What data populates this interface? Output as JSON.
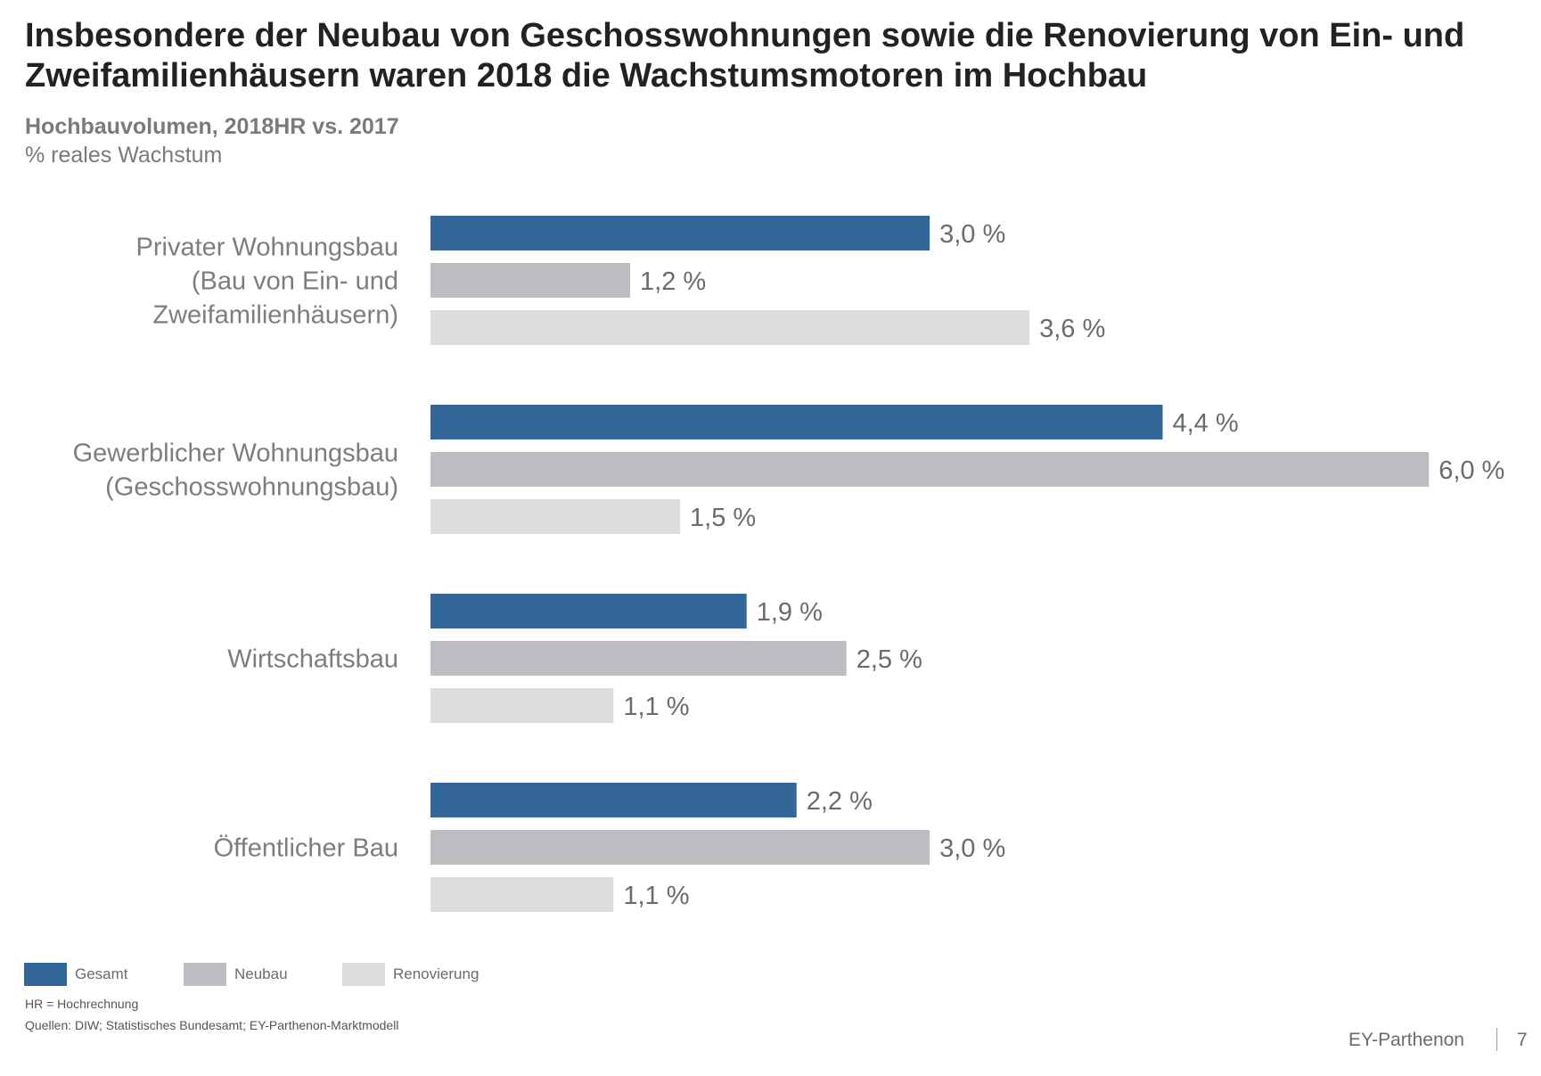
{
  "title": "Insbesondere der Neubau von Geschosswohnungen sowie die Renovierung von Ein- und Zweifamilienhäusern waren 2018 die Wachstumsmotoren im Hochbau",
  "subtitle": "Hochbauvolumen, 2018HR vs. 2017",
  "unit": "% reales Wachstum",
  "chart_data": {
    "type": "bar",
    "orientation": "horizontal",
    "categories": [
      [
        "Privater Wohnungsbau",
        "(Bau von Ein- und",
        "Zweifamilienhäusern)"
      ],
      [
        "Gewerblicher Wohnungsbau",
        "(Geschosswohnungsbau)"
      ],
      [
        "Wirtschaftsbau"
      ],
      [
        "Öffentlicher Bau"
      ]
    ],
    "series": [
      {
        "name": "Gesamt",
        "color": "#336699",
        "values": [
          3.0,
          4.4,
          1.9,
          2.2
        ],
        "labels": [
          "3,0 %",
          "4,4 %",
          "1,9 %",
          "2,2 %"
        ]
      },
      {
        "name": "Neubau",
        "color": "#BCBDC0",
        "values": [
          1.2,
          6.0,
          2.5,
          3.0
        ],
        "labels": [
          "1,2 %",
          "6,0 %",
          "2,5 %",
          "3,0 %"
        ]
      },
      {
        "name": "Renovierung",
        "color": "#DCDDDE",
        "values": [
          3.6,
          1.5,
          1.1,
          1.1
        ],
        "labels": [
          "3,6 %",
          "1,5 %",
          "1,1 %",
          "1,1 %"
        ]
      }
    ],
    "xlim": [
      0,
      6.0
    ],
    "grid": false,
    "legend": "bottom-left"
  },
  "footnotes": {
    "hr": "HR = Hochrechnung",
    "sources": "Quellen: DIW; Statistisches Bundesamt; EY-Parthenon-Marktmodell"
  },
  "brand": "EY-Parthenon",
  "page_number": "7"
}
